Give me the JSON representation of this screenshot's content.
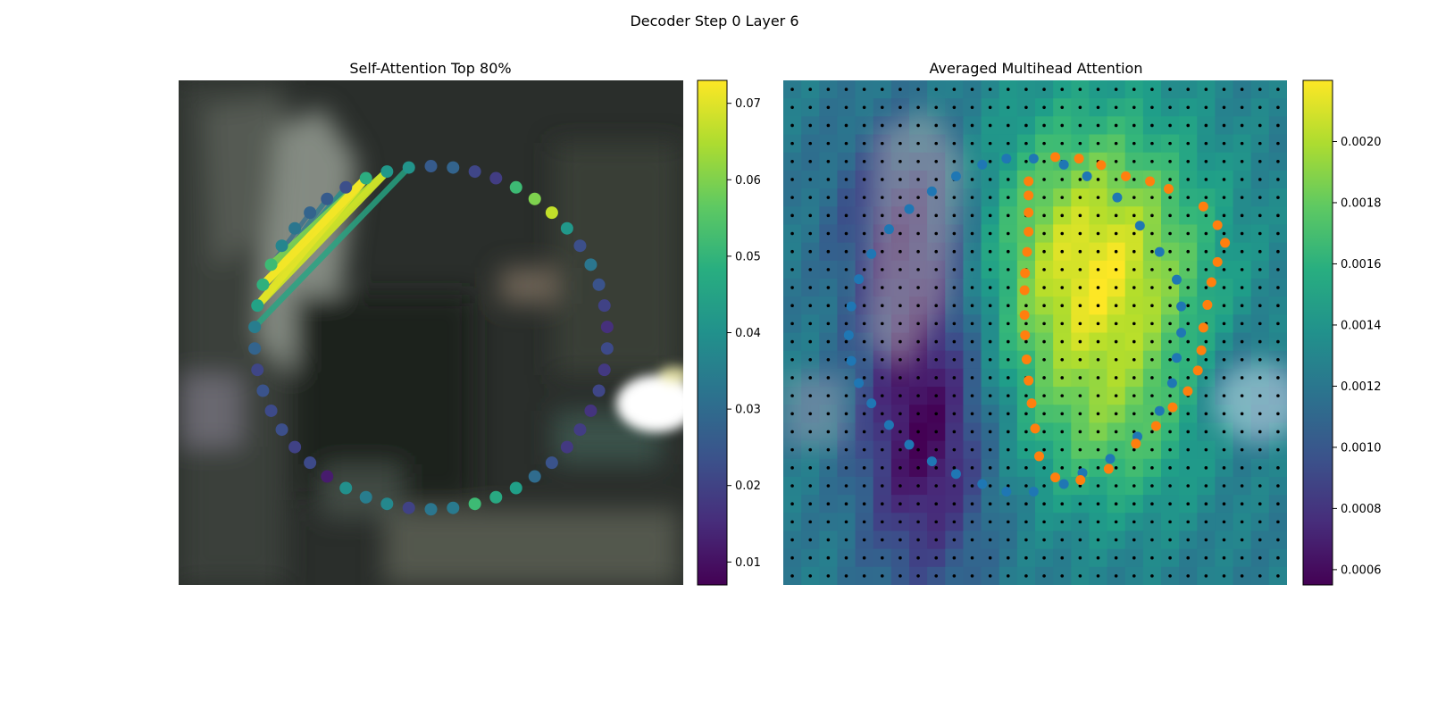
{
  "figure": {
    "title": "Decoder Step 0 Layer 6"
  },
  "chart_data": [
    {
      "type": "scatter",
      "title": "Self-Attention Top 80%",
      "image_extent": [
        0,
        1
      ],
      "contour": {
        "count": 50,
        "center": [
          0.5,
          0.51
        ],
        "radius": [
          0.35,
          0.34
        ]
      },
      "point_values": [
        0.026,
        0.028,
        0.021,
        0.019,
        0.052,
        0.06,
        0.067,
        0.042,
        0.023,
        0.033,
        0.024,
        0.02,
        0.016,
        0.022,
        0.018,
        0.021,
        0.017,
        0.019,
        0.018,
        0.024,
        0.03,
        0.044,
        0.047,
        0.052,
        0.034,
        0.033,
        0.02,
        0.038,
        0.035,
        0.04,
        0.012,
        0.022,
        0.02,
        0.023,
        0.022,
        0.024,
        0.021,
        0.028,
        0.035,
        0.045,
        0.049,
        0.052,
        0.037,
        0.033,
        0.028,
        0.026,
        0.023,
        0.048,
        0.042,
        0.041
      ],
      "attention_links": [
        {
          "from": 47,
          "to": 40,
          "value": 0.072
        },
        {
          "from": 47,
          "to": 39,
          "value": 0.07
        },
        {
          "from": 48,
          "to": 39,
          "value": 0.068
        },
        {
          "from": 48,
          "to": 40,
          "value": 0.066
        },
        {
          "from": 47,
          "to": 41,
          "value": 0.06
        },
        {
          "from": 49,
          "to": 38,
          "value": 0.046
        },
        {
          "from": 46,
          "to": 40,
          "value": 0.04
        },
        {
          "from": 45,
          "to": 40,
          "value": 0.034
        },
        {
          "from": 44,
          "to": 41,
          "value": 0.03
        },
        {
          "from": 48,
          "to": 41,
          "value": 0.032
        }
      ],
      "colorbar": {
        "min": 0.007,
        "max": 0.073,
        "ticks": [
          0.01,
          0.02,
          0.03,
          0.04,
          0.05,
          0.06,
          0.07
        ],
        "tick_labels": [
          "0.01",
          "0.02",
          "0.03",
          "0.04",
          "0.05",
          "0.06",
          "0.07"
        ],
        "colormap": "viridis"
      }
    },
    {
      "type": "heatmap",
      "title": "Averaged Multihead Attention",
      "image_extent": [
        0,
        1
      ],
      "grid": {
        "rows": 28,
        "cols": 28
      },
      "blobs": [
        {
          "x": 0.62,
          "y": 0.38,
          "sx": 0.16,
          "sy": 0.22,
          "w": 1.25
        },
        {
          "x": 0.66,
          "y": 0.72,
          "sx": 0.12,
          "sy": 0.12,
          "w": 0.35
        },
        {
          "x": 0.28,
          "y": 0.68,
          "sx": 0.09,
          "sy": 0.22,
          "w": -0.95
        },
        {
          "x": 0.24,
          "y": 0.28,
          "sx": 0.1,
          "sy": 0.14,
          "w": -0.55
        },
        {
          "x": 0.9,
          "y": 0.6,
          "sx": 0.07,
          "sy": 0.08,
          "w": -0.25
        }
      ],
      "heat_base": 0.42,
      "series": [
        {
          "name": "",
          "color": "#1f77b4",
          "points": [
            [
              0.497,
              0.155
            ],
            [
              0.557,
              0.167
            ],
            [
              0.603,
              0.19
            ],
            [
              0.663,
              0.232
            ],
            [
              0.708,
              0.288
            ],
            [
              0.747,
              0.34
            ],
            [
              0.781,
              0.395
            ],
            [
              0.79,
              0.448
            ],
            [
              0.79,
              0.5
            ],
            [
              0.781,
              0.55
            ],
            [
              0.772,
              0.6
            ],
            [
              0.747,
              0.655
            ],
            [
              0.703,
              0.706
            ],
            [
              0.649,
              0.75
            ],
            [
              0.594,
              0.778
            ],
            [
              0.557,
              0.8
            ],
            [
              0.497,
              0.815
            ],
            [
              0.443,
              0.815
            ],
            [
              0.395,
              0.8
            ],
            [
              0.343,
              0.78
            ],
            [
              0.295,
              0.755
            ],
            [
              0.25,
              0.722
            ],
            [
              0.21,
              0.683
            ],
            [
              0.175,
              0.64
            ],
            [
              0.15,
              0.6
            ],
            [
              0.135,
              0.556
            ],
            [
              0.13,
              0.505
            ],
            [
              0.135,
              0.448
            ],
            [
              0.15,
              0.394
            ],
            [
              0.175,
              0.344
            ],
            [
              0.21,
              0.295
            ],
            [
              0.25,
              0.255
            ],
            [
              0.295,
              0.22
            ],
            [
              0.343,
              0.19
            ],
            [
              0.395,
              0.167
            ],
            [
              0.443,
              0.155
            ]
          ]
        },
        {
          "name": "",
          "color": "#ff7f0e",
          "points": [
            [
              0.54,
              0.152
            ],
            [
              0.587,
              0.155
            ],
            [
              0.631,
              0.168
            ],
            [
              0.68,
              0.19
            ],
            [
              0.728,
              0.2
            ],
            [
              0.765,
              0.215
            ],
            [
              0.834,
              0.25
            ],
            [
              0.862,
              0.287
            ],
            [
              0.877,
              0.322
            ],
            [
              0.862,
              0.36
            ],
            [
              0.85,
              0.4
            ],
            [
              0.842,
              0.445
            ],
            [
              0.834,
              0.49
            ],
            [
              0.83,
              0.535
            ],
            [
              0.823,
              0.575
            ],
            [
              0.803,
              0.616
            ],
            [
              0.773,
              0.648
            ],
            [
              0.74,
              0.685
            ],
            [
              0.7,
              0.72
            ],
            [
              0.646,
              0.77
            ],
            [
              0.59,
              0.792
            ],
            [
              0.54,
              0.787
            ],
            [
              0.508,
              0.745
            ],
            [
              0.5,
              0.69
            ],
            [
              0.493,
              0.64
            ],
            [
              0.487,
              0.595
            ],
            [
              0.483,
              0.553
            ],
            [
              0.48,
              0.505
            ],
            [
              0.479,
              0.465
            ],
            [
              0.479,
              0.416
            ],
            [
              0.48,
              0.382
            ],
            [
              0.484,
              0.34
            ],
            [
              0.487,
              0.3
            ],
            [
              0.487,
              0.262
            ],
            [
              0.487,
              0.228
            ],
            [
              0.487,
              0.2
            ]
          ]
        }
      ],
      "colorbar": {
        "min": 0.00055,
        "max": 0.0022,
        "ticks": [
          0.0006,
          0.0008,
          0.001,
          0.0012,
          0.0014,
          0.0016,
          0.0018,
          0.002
        ],
        "tick_labels": [
          "0.0006",
          "0.0008",
          "0.0010",
          "0.0012",
          "0.0014",
          "0.0016",
          "0.0018",
          "0.0020"
        ],
        "colormap": "viridis"
      }
    }
  ]
}
